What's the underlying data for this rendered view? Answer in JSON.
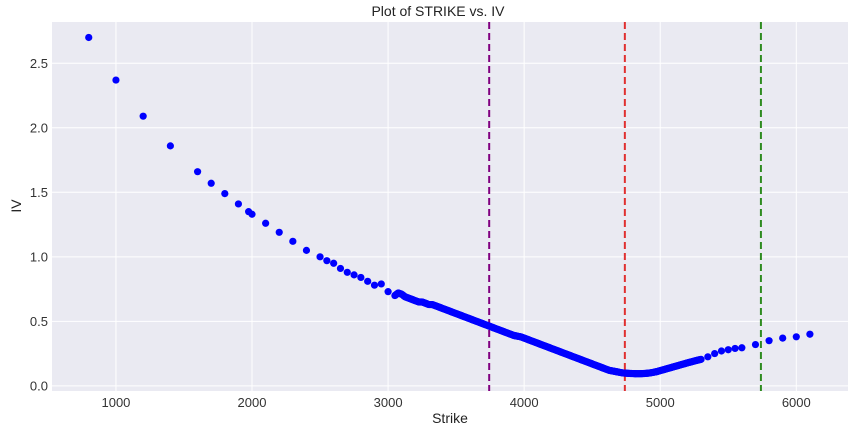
{
  "chart_data": {
    "type": "scatter",
    "title": "Plot of STRIKE vs. IV",
    "xlabel": "Strike",
    "ylabel": "IV",
    "xlim": [
      530,
      6380
    ],
    "ylim": [
      -0.04,
      2.82
    ],
    "xticks": [
      1000,
      2000,
      3000,
      4000,
      5000,
      6000
    ],
    "yticks": [
      0.0,
      0.5,
      1.0,
      1.5,
      2.0,
      2.5
    ],
    "grid": true,
    "background": "#eaeaf2",
    "marker_color": "#0000ff",
    "vlines": [
      {
        "x": 3743,
        "color": "#800080",
        "style": "dashed"
      },
      {
        "x": 4740,
        "color": "#e03030",
        "style": "dashed"
      },
      {
        "x": 5740,
        "color": "#2e8b20",
        "style": "dashed"
      }
    ],
    "series": [
      {
        "name": "IV",
        "x": [
          800,
          1000,
          1200,
          1400,
          1600,
          1700,
          1800,
          1900,
          1975,
          2000,
          2100,
          2200,
          2300,
          2400,
          2500,
          2550,
          2600,
          2650,
          2700,
          2750,
          2800,
          2850,
          2900,
          2950,
          3000,
          3050,
          3075,
          3100,
          3125,
          3150,
          3175,
          3200,
          3225,
          3250,
          3275,
          3300,
          3325,
          3350,
          3375,
          3400,
          3425,
          3450,
          3475,
          3500,
          3525,
          3550,
          3575,
          3600,
          3625,
          3650,
          3675,
          3700,
          3725,
          3750,
          3775,
          3800,
          3825,
          3850,
          3875,
          3900,
          3925,
          3950,
          3975,
          4000,
          4025,
          4050,
          4075,
          4100,
          4125,
          4150,
          4175,
          4200,
          4225,
          4250,
          4275,
          4300,
          4325,
          4350,
          4375,
          4400,
          4425,
          4450,
          4475,
          4500,
          4525,
          4550,
          4575,
          4600,
          4625,
          4650,
          4675,
          4700,
          4725,
          4750,
          4775,
          4800,
          4825,
          4850,
          4875,
          4900,
          4925,
          4950,
          4975,
          5000,
          5025,
          5050,
          5075,
          5100,
          5125,
          5150,
          5175,
          5200,
          5225,
          5250,
          5275,
          5300,
          5350,
          5400,
          5450,
          5500,
          5550,
          5600,
          5700,
          5800,
          5900,
          6000,
          6100
        ],
        "values": [
          2.7,
          2.37,
          2.09,
          1.86,
          1.66,
          1.57,
          1.49,
          1.41,
          1.35,
          1.33,
          1.26,
          1.19,
          1.12,
          1.05,
          1.0,
          0.97,
          0.95,
          0.91,
          0.88,
          0.86,
          0.84,
          0.81,
          0.78,
          0.79,
          0.73,
          0.7,
          0.72,
          0.71,
          0.69,
          0.68,
          0.67,
          0.66,
          0.65,
          0.65,
          0.64,
          0.63,
          0.63,
          0.62,
          0.61,
          0.6,
          0.59,
          0.58,
          0.57,
          0.56,
          0.55,
          0.54,
          0.53,
          0.52,
          0.51,
          0.5,
          0.49,
          0.48,
          0.47,
          0.46,
          0.45,
          0.44,
          0.43,
          0.42,
          0.41,
          0.4,
          0.39,
          0.385,
          0.38,
          0.37,
          0.36,
          0.35,
          0.34,
          0.33,
          0.32,
          0.31,
          0.3,
          0.29,
          0.28,
          0.27,
          0.26,
          0.25,
          0.24,
          0.23,
          0.22,
          0.21,
          0.2,
          0.19,
          0.18,
          0.17,
          0.16,
          0.15,
          0.14,
          0.13,
          0.12,
          0.115,
          0.11,
          0.105,
          0.1,
          0.098,
          0.096,
          0.095,
          0.094,
          0.094,
          0.095,
          0.097,
          0.1,
          0.105,
          0.11,
          0.118,
          0.125,
          0.133,
          0.14,
          0.148,
          0.155,
          0.163,
          0.17,
          0.178,
          0.185,
          0.192,
          0.199,
          0.205,
          0.225,
          0.25,
          0.27,
          0.28,
          0.29,
          0.295,
          0.32,
          0.35,
          0.37,
          0.38,
          0.4
        ]
      }
    ]
  }
}
